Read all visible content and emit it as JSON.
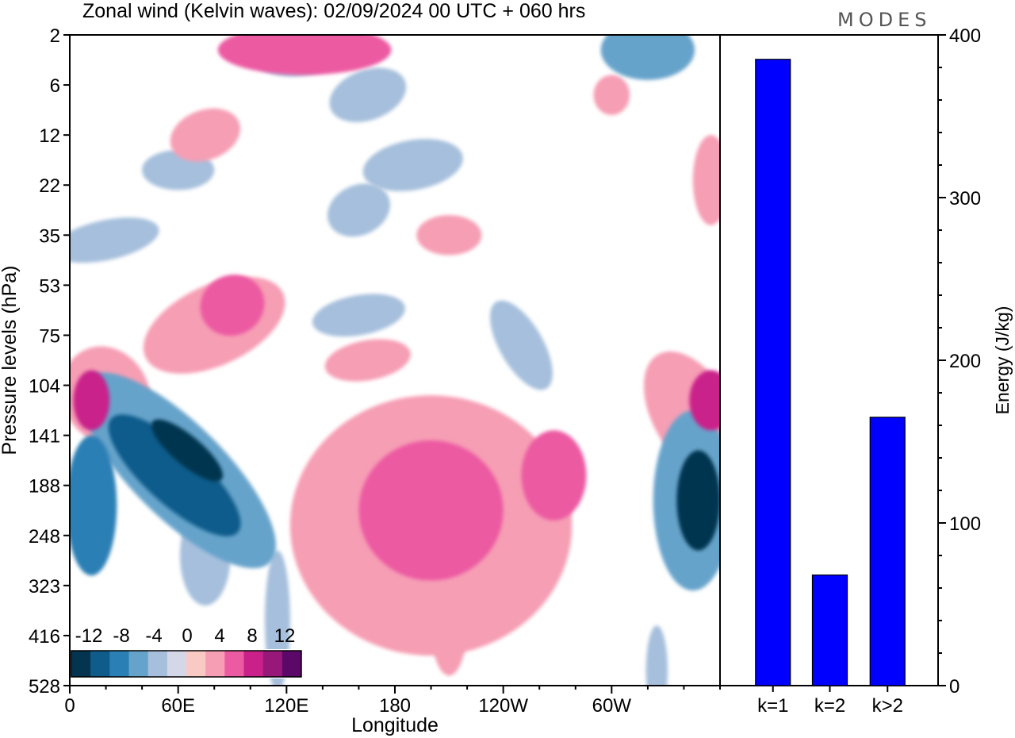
{
  "title": "Zonal wind (Kelvin waves):  02/09/2024  00 UTC  + 060 hrs",
  "logo": "MODES",
  "colors": {
    "neg": [
      "#04344f",
      "#0f5c8b",
      "#2a7fb5",
      "#66a3ca",
      "#a6bfdc",
      "#d3d7e7"
    ],
    "zero": "#ffffff",
    "pos": [
      "#f9cac4",
      "#f69eb4",
      "#ec5aa2",
      "#c9208a",
      "#971879",
      "#5c0868"
    ],
    "bar": "#0000ff"
  },
  "chart_data": [
    {
      "type": "heatmap",
      "title": "Zonal wind (Kelvin waves):  02/09/2024  00 UTC  + 060 hrs",
      "xlabel": "Longitude",
      "ylabel": "Pressure levels (hPa)",
      "x_ticks": [
        "0",
        "60E",
        "120E",
        "180",
        "120W",
        "60W"
      ],
      "x_tick_degrees": [
        0,
        60,
        120,
        180,
        240,
        300
      ],
      "xlim": [
        0,
        360
      ],
      "y_levels": [
        "2",
        "6",
        "12",
        "22",
        "35",
        "53",
        "75",
        "104",
        "141",
        "188",
        "248",
        "323",
        "416",
        "528"
      ],
      "colorbar": {
        "labels": [
          "-12",
          "-8",
          "-4",
          "0",
          "4",
          "8",
          "12"
        ],
        "bins": 14
      },
      "features": [
        {
          "lon": 65,
          "level": 8.3,
          "value": -13,
          "rx": 8,
          "ry": 0.9,
          "rot": -50
        },
        {
          "lon": 58,
          "level": 8.8,
          "value": -9,
          "rx": 16,
          "ry": 1.7,
          "rot": -48
        },
        {
          "lon": 60,
          "level": 8.7,
          "value": -5,
          "rx": 26,
          "ry": 2.6,
          "rot": -45
        },
        {
          "lon": 12,
          "level": 9.4,
          "value": -6,
          "rx": 14,
          "ry": 1.4,
          "rot": 0
        },
        {
          "lon": 348,
          "level": 9.3,
          "value": -10,
          "rx": 12,
          "ry": 1.0,
          "rot": 0
        },
        {
          "lon": 345,
          "level": 9.3,
          "value": -5,
          "rx": 22,
          "ry": 1.8,
          "rot": 0
        },
        {
          "lon": 130,
          "level": 0.2,
          "value": -2,
          "rx": 30,
          "ry": 0.6,
          "rot": -12
        },
        {
          "lon": 165,
          "level": 1.2,
          "value": -2,
          "rx": 22,
          "ry": 0.5,
          "rot": -20
        },
        {
          "lon": 190,
          "level": 2.6,
          "value": -2,
          "rx": 28,
          "ry": 0.5,
          "rot": -10
        },
        {
          "lon": 160,
          "level": 3.5,
          "value": -2,
          "rx": 18,
          "ry": 0.5,
          "rot": -25
        },
        {
          "lon": 60,
          "level": 2.7,
          "value": -2,
          "rx": 20,
          "ry": 0.4,
          "rot": 0
        },
        {
          "lon": 20,
          "level": 4.1,
          "value": -2,
          "rx": 30,
          "ry": 0.4,
          "rot": -12
        },
        {
          "lon": 160,
          "level": 5.6,
          "value": -2,
          "rx": 26,
          "ry": 0.4,
          "rot": -10
        },
        {
          "lon": 250,
          "level": 6.2,
          "value": -2,
          "rx": 12,
          "ry": 1.0,
          "rot": -30
        },
        {
          "lon": 320,
          "level": 0.3,
          "value": -4,
          "rx": 26,
          "ry": 0.6,
          "rot": 0
        },
        {
          "lon": 115,
          "level": 11.7,
          "value": -2,
          "rx": 7,
          "ry": 1.4,
          "rot": 0
        },
        {
          "lon": 75,
          "level": 10.4,
          "value": -2,
          "rx": 14,
          "ry": 1.0,
          "rot": 0
        },
        {
          "lon": 325,
          "level": 12.7,
          "value": -2,
          "rx": 6,
          "ry": 0.9,
          "rot": 0
        },
        {
          "lon": 12,
          "level": 7.3,
          "value": 6,
          "rx": 10,
          "ry": 0.6,
          "rot": 0
        },
        {
          "lon": 20,
          "level": 7.2,
          "value": 3,
          "rx": 24,
          "ry": 1.0,
          "rot": -25
        },
        {
          "lon": 90,
          "level": 5.4,
          "value": 5,
          "rx": 18,
          "ry": 0.6,
          "rot": -25
        },
        {
          "lon": 80,
          "level": 5.8,
          "value": 3,
          "rx": 42,
          "ry": 0.8,
          "rot": -25
        },
        {
          "lon": 200,
          "level": 9.5,
          "value": 5,
          "rx": 40,
          "ry": 1.4,
          "rot": 0
        },
        {
          "lon": 200,
          "level": 9.8,
          "value": 3,
          "rx": 78,
          "ry": 2.6,
          "rot": 0
        },
        {
          "lon": 268,
          "level": 8.8,
          "value": 5,
          "rx": 18,
          "ry": 0.9,
          "rot": 0
        },
        {
          "lon": 355,
          "level": 7.3,
          "value": 6,
          "rx": 12,
          "ry": 0.6,
          "rot": 0
        },
        {
          "lon": 345,
          "level": 7.6,
          "value": 3,
          "rx": 22,
          "ry": 1.4,
          "rot": -30
        },
        {
          "lon": 130,
          "level": 0.3,
          "value": 4,
          "rx": 48,
          "ry": 0.5,
          "rot": 0
        },
        {
          "lon": 75,
          "level": 2.0,
          "value": 3,
          "rx": 20,
          "ry": 0.5,
          "rot": -20
        },
        {
          "lon": 210,
          "level": 4.0,
          "value": 2,
          "rx": 18,
          "ry": 0.4,
          "rot": 0
        },
        {
          "lon": 165,
          "level": 6.5,
          "value": 2,
          "rx": 24,
          "ry": 0.4,
          "rot": -10
        },
        {
          "lon": 355,
          "level": 2.9,
          "value": 2,
          "rx": 10,
          "ry": 0.9,
          "rot": 0
        },
        {
          "lon": 210,
          "level": 11.8,
          "value": 2,
          "rx": 10,
          "ry": 1.0,
          "rot": 0
        },
        {
          "lon": 300,
          "level": 1.2,
          "value": 2,
          "rx": 10,
          "ry": 0.4,
          "rot": 0
        }
      ]
    },
    {
      "type": "bar",
      "categories": [
        "k=1",
        "k=2",
        "k>2"
      ],
      "values": [
        385,
        68,
        165
      ],
      "ylabel": "Energy (J/kg)",
      "ylim": [
        0,
        400
      ],
      "y_ticks": [
        "0",
        "100",
        "200",
        "300",
        "400"
      ]
    }
  ]
}
